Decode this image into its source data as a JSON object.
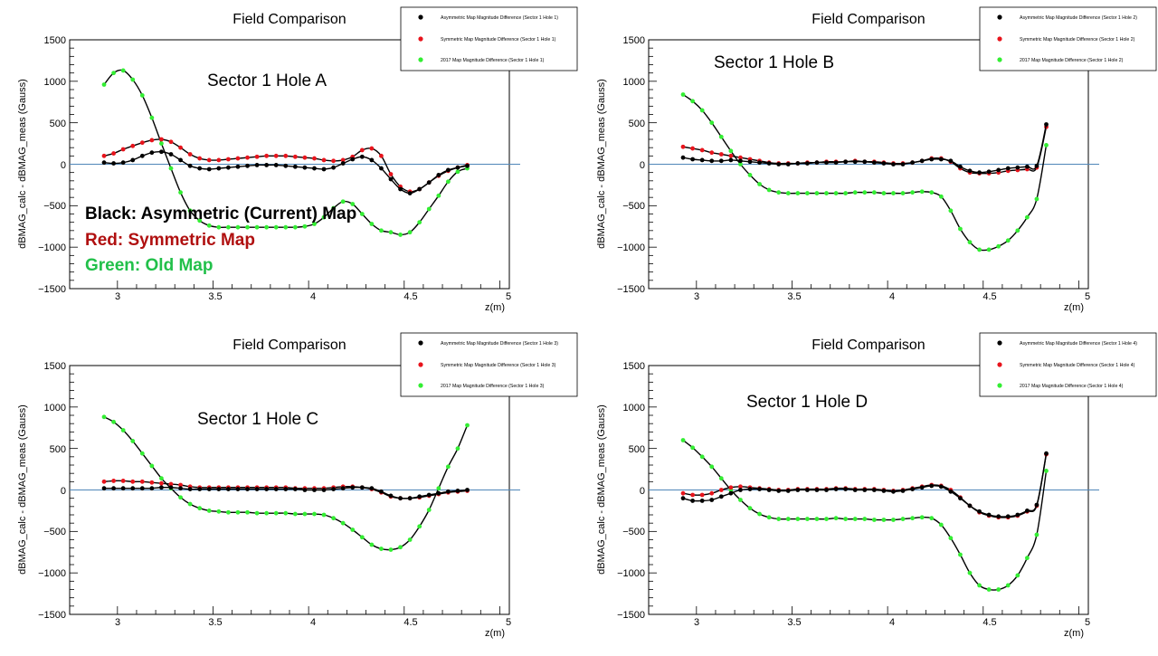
{
  "colors": {
    "asymmetric": "#000000",
    "symmetric": "#e8141c",
    "old_map": "#33ee33",
    "fit_line": "#000000",
    "zero_line": "#4f86b8",
    "annotation_black": "#000000",
    "annotation_red": "#b01010",
    "annotation_green": "#22c04a"
  },
  "chart_data": [
    {
      "type": "line",
      "title": "Field Comparison",
      "xlabel": "z(m)",
      "ylabel": "dBMAG_calc - dBMAG_meas (Gauss)",
      "xlim": [
        2.75,
        5.05
      ],
      "ylim": [
        -1500,
        1500
      ],
      "x_ticks": [
        "3",
        "3.5",
        "4",
        "4.5",
        "5"
      ],
      "y_ticks": [
        "1500",
        "1000",
        "500",
        "0",
        "−500",
        "−1000",
        "−1500"
      ],
      "grid": false,
      "legend_position": "top-right",
      "annotation": "Sector 1 Hole A",
      "x": [
        2.93,
        2.98,
        3.03,
        3.08,
        3.13,
        3.18,
        3.23,
        3.28,
        3.33,
        3.38,
        3.43,
        3.48,
        3.53,
        3.58,
        3.63,
        3.68,
        3.73,
        3.78,
        3.83,
        3.88,
        3.93,
        3.98,
        4.03,
        4.08,
        4.13,
        4.18,
        4.23,
        4.28,
        4.33,
        4.38,
        4.43,
        4.48,
        4.53,
        4.58,
        4.63,
        4.68,
        4.73,
        4.78,
        4.83
      ],
      "series": [
        {
          "name": "Asymmetric Map Magnitude Difference (Sector 1 Hole 1)",
          "values": [
            20,
            10,
            20,
            50,
            100,
            140,
            150,
            120,
            50,
            -20,
            -50,
            -60,
            -50,
            -40,
            -30,
            -20,
            -10,
            -10,
            -10,
            -20,
            -30,
            -40,
            -50,
            -60,
            -40,
            10,
            60,
            90,
            50,
            -50,
            -180,
            -300,
            -350,
            -300,
            -220,
            -130,
            -70,
            -40,
            -20
          ]
        },
        {
          "name": "Symmetric Map Magnitude Difference (Sector 1 Hole 1)",
          "values": [
            100,
            130,
            180,
            220,
            260,
            290,
            300,
            270,
            200,
            120,
            70,
            50,
            50,
            60,
            70,
            80,
            90,
            100,
            100,
            100,
            90,
            80,
            70,
            50,
            40,
            50,
            90,
            170,
            190,
            100,
            -120,
            -270,
            -330,
            -300,
            -220,
            -140,
            -80,
            -40,
            -10
          ]
        },
        {
          "name": "2017 Map Magnitude Difference (Sector 1 Hole 1)",
          "values": [
            960,
            1100,
            1130,
            1020,
            830,
            560,
            250,
            -50,
            -340,
            -560,
            -680,
            -740,
            -760,
            -760,
            -760,
            -760,
            -760,
            -760,
            -760,
            -760,
            -760,
            -750,
            -720,
            -640,
            -530,
            -450,
            -480,
            -600,
            -720,
            -800,
            -820,
            -850,
            -820,
            -700,
            -540,
            -380,
            -210,
            -90,
            -50
          ]
        }
      ]
    },
    {
      "type": "line",
      "title": "Field Comparison",
      "xlabel": "z(m)",
      "ylabel": "dBMAG_calc - dBMAG_meas (Gauss)",
      "xlim": [
        2.75,
        5.05
      ],
      "ylim": [
        -1500,
        1500
      ],
      "x_ticks": [
        "3",
        "3.5",
        "4",
        "4.5",
        "5"
      ],
      "y_ticks": [
        "1500",
        "1000",
        "500",
        "0",
        "−500",
        "−1000",
        "−1500"
      ],
      "grid": false,
      "legend_position": "top-right",
      "annotation": "Sector 1 Hole B",
      "x": [
        2.93,
        2.98,
        3.03,
        3.08,
        3.13,
        3.18,
        3.23,
        3.28,
        3.33,
        3.38,
        3.43,
        3.48,
        3.53,
        3.58,
        3.63,
        3.68,
        3.73,
        3.78,
        3.83,
        3.88,
        3.93,
        3.98,
        4.03,
        4.08,
        4.13,
        4.18,
        4.23,
        4.28,
        4.33,
        4.38,
        4.43,
        4.48,
        4.53,
        4.58,
        4.63,
        4.68,
        4.73,
        4.78,
        4.83
      ],
      "series": [
        {
          "name": "Asymmetric Map Magnitude Difference (Sector 1 Hole 2)",
          "values": [
            80,
            60,
            50,
            40,
            40,
            50,
            40,
            30,
            20,
            10,
            0,
            0,
            10,
            10,
            20,
            20,
            20,
            30,
            30,
            30,
            20,
            10,
            0,
            0,
            20,
            40,
            60,
            60,
            40,
            -30,
            -80,
            -100,
            -90,
            -70,
            -50,
            -40,
            -30,
            -20,
            480
          ]
        },
        {
          "name": "Symmetric Map Magnitude Difference (Sector 1 Hole 2)",
          "values": [
            210,
            190,
            170,
            140,
            120,
            100,
            80,
            60,
            40,
            20,
            10,
            10,
            10,
            20,
            20,
            30,
            30,
            30,
            40,
            30,
            30,
            20,
            10,
            10,
            20,
            40,
            70,
            70,
            30,
            -50,
            -100,
            -110,
            -110,
            -100,
            -80,
            -70,
            -60,
            -40,
            450
          ]
        },
        {
          "name": "2017 Map Magnitude Difference (Sector 1 Hole 2)",
          "values": [
            840,
            760,
            650,
            500,
            330,
            160,
            0,
            -130,
            -240,
            -310,
            -340,
            -350,
            -350,
            -350,
            -350,
            -350,
            -350,
            -350,
            -340,
            -340,
            -340,
            -350,
            -350,
            -350,
            -340,
            -330,
            -340,
            -390,
            -560,
            -780,
            -940,
            -1030,
            -1030,
            -990,
            -920,
            -800,
            -640,
            -420,
            230
          ]
        }
      ]
    },
    {
      "type": "line",
      "title": "Field Comparison",
      "xlabel": "z(m)",
      "ylabel": "dBMAG_calc - dBMAG_meas (Gauss)",
      "xlim": [
        2.75,
        5.05
      ],
      "ylim": [
        -1500,
        1500
      ],
      "x_ticks": [
        "3",
        "3.5",
        "4",
        "4.5",
        "5"
      ],
      "y_ticks": [
        "1500",
        "1000",
        "500",
        "0",
        "−500",
        "−1000",
        "−1500"
      ],
      "grid": false,
      "legend_position": "top-right",
      "annotation": "Sector 1 Hole C",
      "x": [
        2.93,
        2.98,
        3.03,
        3.08,
        3.13,
        3.18,
        3.23,
        3.28,
        3.33,
        3.38,
        3.43,
        3.48,
        3.53,
        3.58,
        3.63,
        3.68,
        3.73,
        3.78,
        3.83,
        3.88,
        3.93,
        3.98,
        4.03,
        4.08,
        4.13,
        4.18,
        4.23,
        4.28,
        4.33,
        4.38,
        4.43,
        4.48,
        4.53,
        4.58,
        4.63,
        4.68,
        4.73,
        4.78,
        4.83
      ],
      "series": [
        {
          "name": "Asymmetric Map Magnitude Difference (Sector 1 Hole 3)",
          "values": [
            20,
            20,
            20,
            20,
            20,
            20,
            30,
            30,
            20,
            10,
            10,
            10,
            10,
            10,
            10,
            10,
            10,
            10,
            10,
            10,
            10,
            0,
            0,
            0,
            10,
            20,
            30,
            30,
            20,
            -20,
            -70,
            -100,
            -100,
            -80,
            -60,
            -40,
            -20,
            -10,
            0
          ]
        },
        {
          "name": "Symmetric Map Magnitude Difference (Sector 1 Hole 3)",
          "values": [
            100,
            110,
            110,
            100,
            100,
            90,
            80,
            70,
            60,
            40,
            30,
            30,
            30,
            30,
            30,
            30,
            30,
            30,
            30,
            30,
            20,
            20,
            20,
            20,
            30,
            40,
            40,
            30,
            10,
            -30,
            -80,
            -100,
            -100,
            -90,
            -70,
            -50,
            -30,
            -20,
            -10
          ]
        },
        {
          "name": "2017 Map Magnitude Difference (Sector 1 Hole 3)",
          "values": [
            880,
            820,
            720,
            590,
            440,
            290,
            140,
            20,
            -90,
            -170,
            -220,
            -250,
            -260,
            -270,
            -270,
            -270,
            -280,
            -280,
            -280,
            -280,
            -290,
            -290,
            -290,
            -300,
            -340,
            -400,
            -480,
            -570,
            -660,
            -710,
            -720,
            -690,
            -600,
            -440,
            -240,
            20,
            280,
            500,
            780
          ]
        }
      ]
    },
    {
      "type": "line",
      "title": "Field Comparison",
      "xlabel": "z(m)",
      "ylabel": "dBMAG_calc - dBMAG_meas (Gauss)",
      "xlim": [
        2.75,
        5.05
      ],
      "ylim": [
        -1500,
        1500
      ],
      "x_ticks": [
        "3",
        "3.5",
        "4",
        "4.5",
        "5"
      ],
      "y_ticks": [
        "1500",
        "1000",
        "500",
        "0",
        "−500",
        "−1000",
        "−1500"
      ],
      "grid": false,
      "legend_position": "top-right",
      "annotation": "Sector 1 Hole D",
      "x": [
        2.93,
        2.98,
        3.03,
        3.08,
        3.13,
        3.18,
        3.23,
        3.28,
        3.33,
        3.38,
        3.43,
        3.48,
        3.53,
        3.58,
        3.63,
        3.68,
        3.73,
        3.78,
        3.83,
        3.88,
        3.93,
        3.98,
        4.03,
        4.08,
        4.13,
        4.18,
        4.23,
        4.28,
        4.33,
        4.38,
        4.43,
        4.48,
        4.53,
        4.58,
        4.63,
        4.68,
        4.73,
        4.78,
        4.83
      ],
      "series": [
        {
          "name": "Asymmetric Map Magnitude Difference (Sector 1 Hole 4)",
          "values": [
            -100,
            -130,
            -130,
            -120,
            -80,
            -40,
            0,
            10,
            10,
            0,
            -10,
            -10,
            0,
            0,
            0,
            0,
            10,
            10,
            0,
            0,
            0,
            -10,
            -20,
            -10,
            10,
            30,
            50,
            40,
            -20,
            -100,
            -190,
            -260,
            -300,
            -320,
            -320,
            -300,
            -250,
            -180,
            440
          ]
        },
        {
          "name": "Symmetric Map Magnitude Difference (Sector 1 Hole 4)",
          "values": [
            -40,
            -60,
            -60,
            -40,
            0,
            30,
            40,
            30,
            20,
            10,
            0,
            0,
            10,
            10,
            10,
            10,
            20,
            20,
            10,
            10,
            10,
            0,
            -10,
            0,
            20,
            40,
            60,
            50,
            0,
            -90,
            -190,
            -270,
            -310,
            -330,
            -330,
            -310,
            -260,
            -190,
            430
          ]
        },
        {
          "name": "2017 Map Magnitude Difference (Sector 1 Hole 4)",
          "values": [
            600,
            510,
            400,
            280,
            140,
            0,
            -120,
            -220,
            -290,
            -330,
            -350,
            -350,
            -350,
            -350,
            -350,
            -350,
            -340,
            -350,
            -350,
            -350,
            -360,
            -360,
            -360,
            -350,
            -340,
            -330,
            -340,
            -420,
            -580,
            -780,
            -1000,
            -1150,
            -1200,
            -1200,
            -1150,
            -1030,
            -820,
            -540,
            230
          ]
        }
      ]
    }
  ],
  "panel_a": {
    "title": "Field Comparison",
    "ylabel": "dBMAG_calc - dBMAG_meas (Gauss)",
    "xlabel": "z(m)",
    "legend": [
      "Asymmetric Map Magnitude Difference (Sector 1 Hole 1)",
      "Symmetric Map Magnitude Difference (Sector 1 Hole 1)",
      "2017 Map Magnitude Difference (Sector 1 Hole 1)"
    ],
    "annotation": "Sector 1 Hole A"
  },
  "panel_b": {
    "title": "Field Comparison",
    "ylabel": "dBMAG_calc - dBMAG_meas (Gauss)",
    "xlabel": "z(m)",
    "legend": [
      "Asymmetric Map Magnitude Difference (Sector 1 Hole 2)",
      "Symmetric Map Magnitude Difference (Sector 1 Hole 2)",
      "2017 Map Magnitude Difference (Sector 1 Hole 2)"
    ],
    "annotation": "Sector 1 Hole B"
  },
  "panel_c": {
    "title": "Field Comparison",
    "ylabel": "dBMAG_calc - dBMAG_meas (Gauss)",
    "xlabel": "z(m)",
    "legend": [
      "Asymmetric Map Magnitude Difference (Sector 1 Hole 3)",
      "Symmetric Map Magnitude Difference (Sector 1 Hole 3)",
      "2017 Map Magnitude Difference (Sector 1 Hole 3)"
    ],
    "annotation": "Sector 1 Hole C"
  },
  "panel_d": {
    "title": "Field Comparison",
    "ylabel": "dBMAG_calc - dBMAG_meas (Gauss)",
    "xlabel": "z(m)",
    "legend": [
      "Asymmetric Map Magnitude Difference (Sector 1 Hole 4)",
      "Symmetric Map Magnitude Difference (Sector 1 Hole 4)",
      "2017 Map Magnitude Difference (Sector 1 Hole 4)"
    ],
    "annotation": "Sector 1 Hole D"
  },
  "key_text": {
    "black": "Black:  Asymmetric (Current) Map",
    "red": "Red:  Symmetric Map",
    "green": "Green:  Old Map"
  }
}
